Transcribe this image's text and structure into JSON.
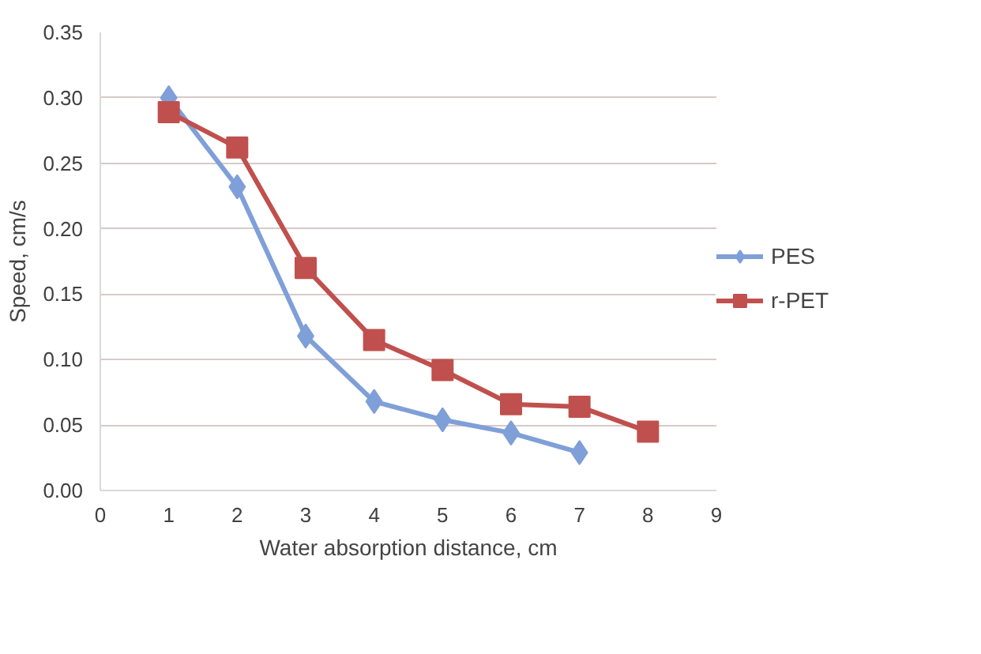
{
  "chart_data": {
    "type": "line",
    "xlabel": "Water absorption distance, cm",
    "ylabel": "Speed, cm/s",
    "xlim": [
      0,
      9
    ],
    "xticks": [
      0,
      1,
      2,
      3,
      4,
      5,
      6,
      7,
      8,
      9
    ],
    "ylim": [
      0,
      0.35
    ],
    "yticks": [
      {
        "value": 0,
        "label": "0.00"
      },
      {
        "value": 0.05,
        "label": "0.05"
      },
      {
        "value": 0.1,
        "label": "0.10"
      },
      {
        "value": 0.15,
        "label": "0.15"
      },
      {
        "value": 0.2,
        "label": "0.20"
      },
      {
        "value": 0.25,
        "label": "0.25"
      },
      {
        "value": 0.3,
        "label": "0.30"
      },
      {
        "value": 0.35,
        "label": "0.35"
      }
    ],
    "grid": "y",
    "legend": "right",
    "line_style": "solid",
    "series": [
      {
        "name": "PES",
        "color": "#7f9fd8",
        "marker": "diamond",
        "x": [
          1,
          2,
          3,
          4,
          5,
          6,
          7
        ],
        "values": [
          0.3,
          0.232,
          0.118,
          0.068,
          0.054,
          0.044,
          0.029
        ]
      },
      {
        "name": "r-PET",
        "color": "#c0504d",
        "marker": "square",
        "x": [
          1,
          2,
          3,
          4,
          5,
          6,
          7,
          8
        ],
        "values": [
          0.289,
          0.262,
          0.17,
          0.115,
          0.092,
          0.066,
          0.064,
          0.045
        ]
      }
    ]
  }
}
